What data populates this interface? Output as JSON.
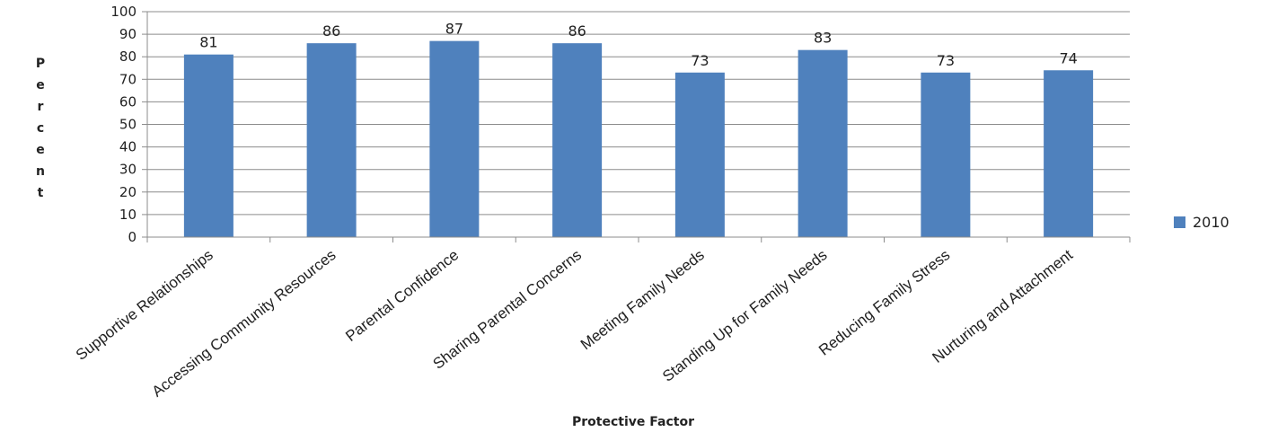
{
  "chart_data": {
    "type": "bar",
    "categories": [
      "Supportive Relationships",
      "Accessing Community Resources",
      "Parental Confidence",
      "Sharing Parental Concerns",
      "Meeting Family Needs",
      "Standing Up for Family Needs",
      "Reducing Family Stress",
      "Nurturing and Attachment"
    ],
    "series": [
      {
        "name": "2010",
        "values": [
          81,
          86,
          87,
          86,
          73,
          83,
          73,
          74
        ],
        "color": "#4F81BD"
      }
    ],
    "data_labels": [
      "81",
      "86",
      "87",
      "86",
      "73",
      "83",
      "73",
      "74"
    ],
    "xlabel": "Protective Factor",
    "ylabel": "Percent",
    "ylim": [
      0,
      100
    ],
    "yticks": [
      0,
      10,
      20,
      30,
      40,
      50,
      60,
      70,
      80,
      90,
      100
    ],
    "grid": true,
    "legend_position": "right"
  }
}
